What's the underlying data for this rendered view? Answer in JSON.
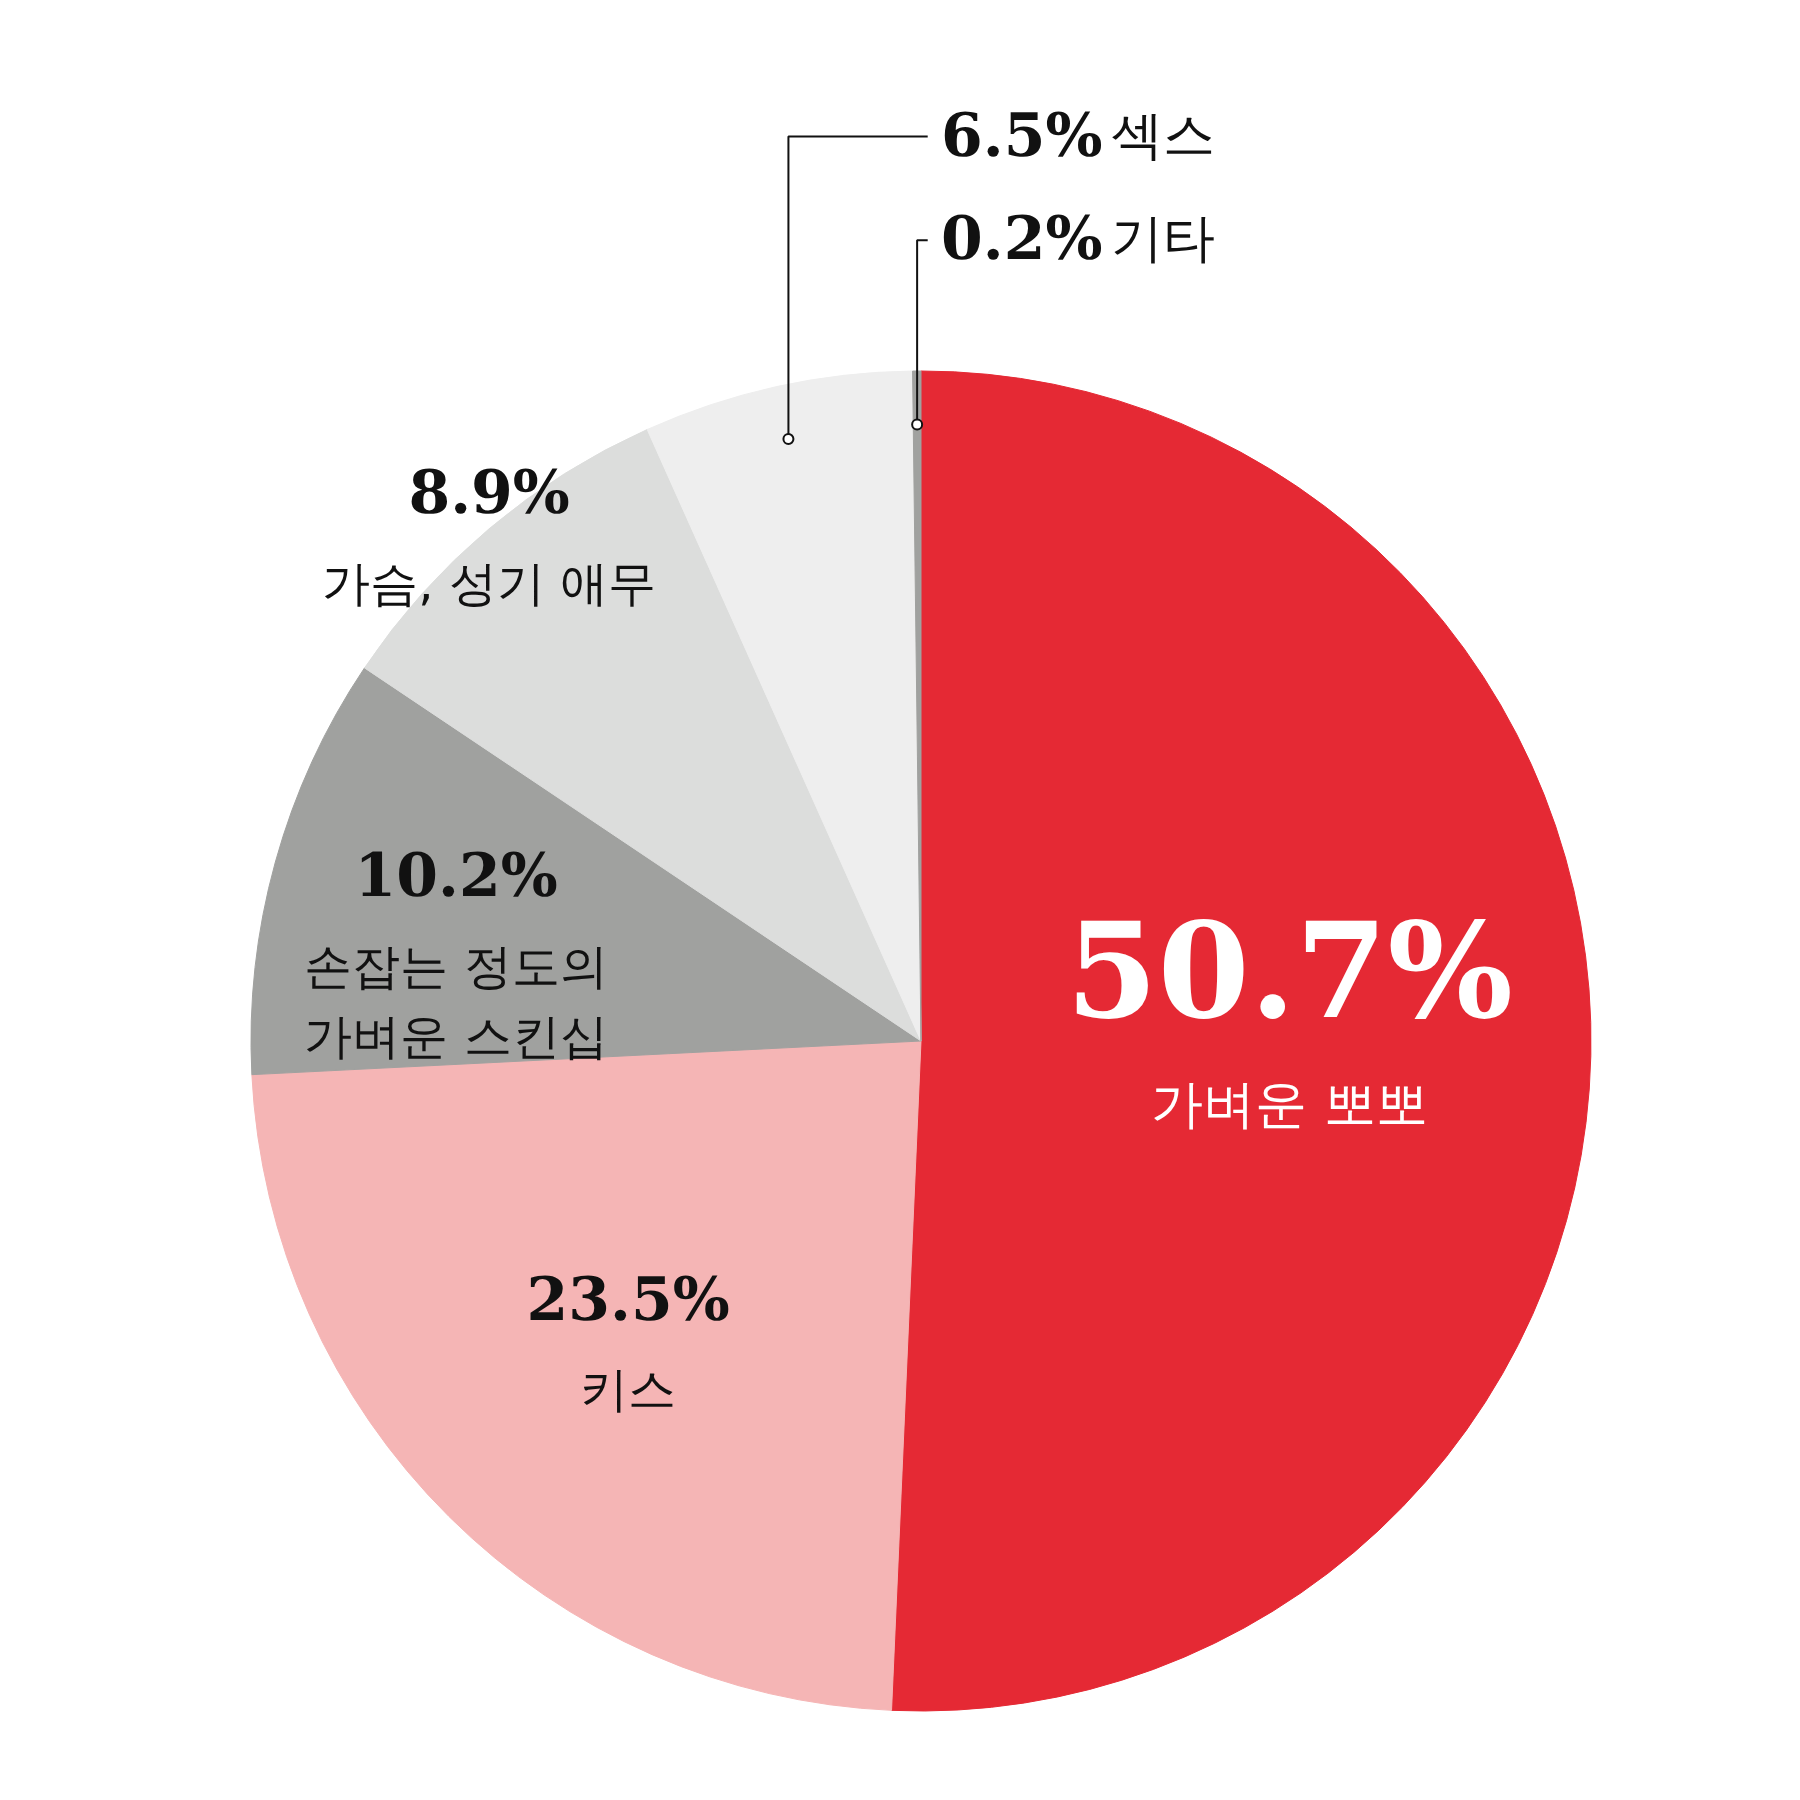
{
  "chart_data": {
    "type": "pie",
    "categories": [
      "가벼운 뽀뽀",
      "키스",
      "손잡는 정도의\n가벼운 스킨십",
      "가슴, 성기 애무",
      "섹스",
      "기타"
    ],
    "values": [
      50.7,
      23.5,
      10.2,
      8.9,
      6.5,
      0.2
    ],
    "value_labels": [
      "50.7%",
      "23.5%",
      "10.2%",
      "8.9%",
      "6.5%",
      "0.2%"
    ],
    "colors": [
      "#e52934",
      "#f5b5b5",
      "#a0a19f",
      "#dcdddc",
      "#eeeeee",
      "#a0a19f"
    ]
  }
}
